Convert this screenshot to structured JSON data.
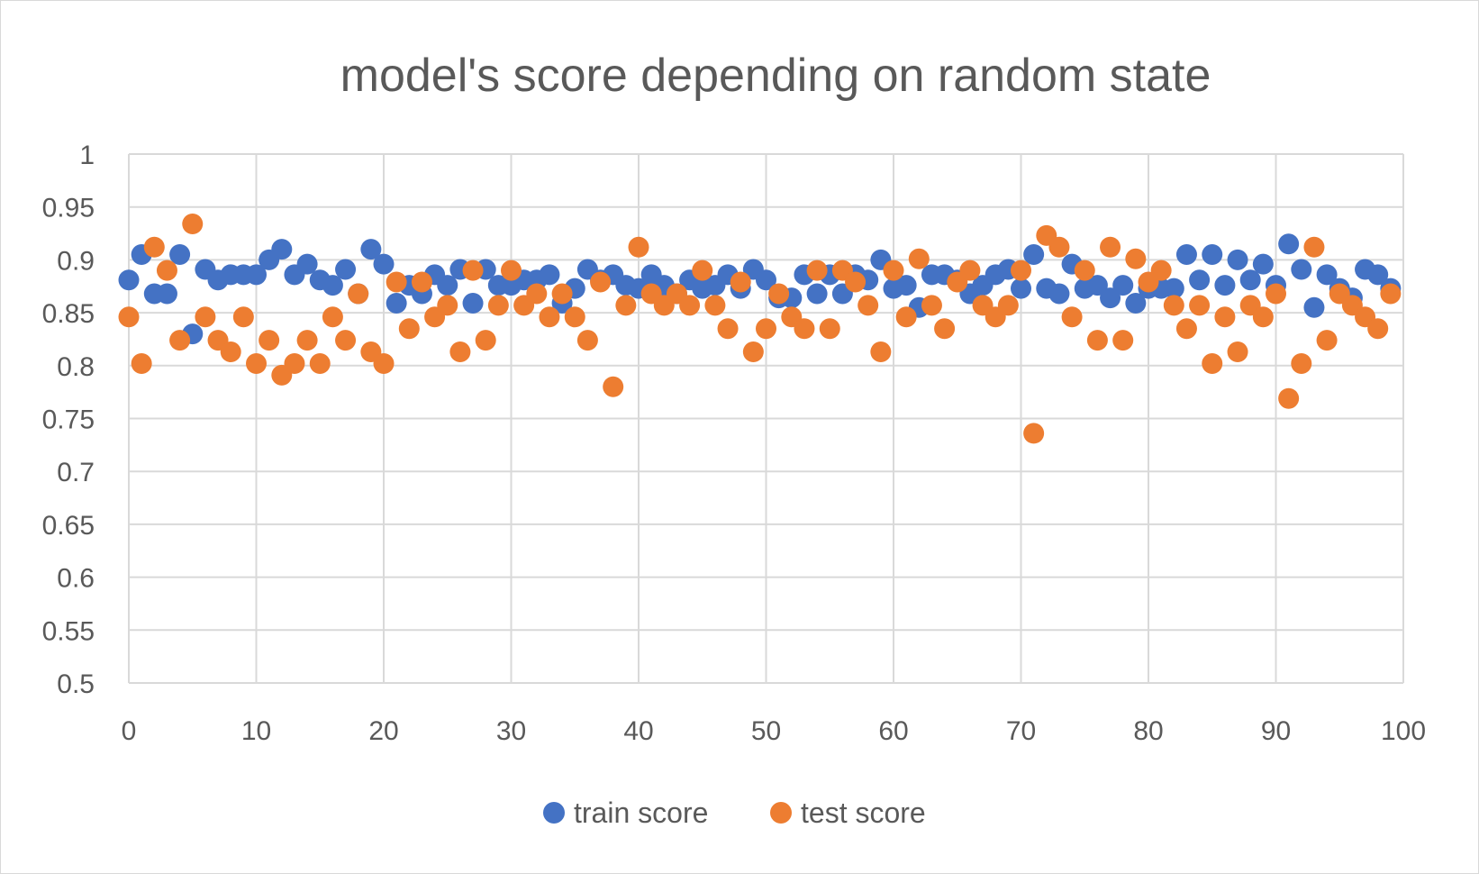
{
  "chart_data": {
    "type": "scatter",
    "title": "model's score depending on random state",
    "xlabel": "",
    "ylabel": "",
    "xlim": [
      0,
      100
    ],
    "ylim": [
      0.5,
      1
    ],
    "x_ticks": [
      0,
      10,
      20,
      30,
      40,
      50,
      60,
      70,
      80,
      90,
      100
    ],
    "y_ticks": [
      0.5,
      0.55,
      0.6,
      0.65,
      0.7,
      0.75,
      0.8,
      0.85,
      0.9,
      0.95,
      1
    ],
    "y_tick_labels": [
      "0.5",
      "0.55",
      "0.6",
      "0.65",
      "0.7",
      "0.75",
      "0.8",
      "0.85",
      "0.9",
      "0.95",
      "1"
    ],
    "grid": true,
    "legend_position": "bottom",
    "series": [
      {
        "name": "train score",
        "color": "#4472c4",
        "x": [
          0,
          1,
          2,
          3,
          4,
          5,
          6,
          7,
          8,
          9,
          10,
          11,
          12,
          13,
          14,
          15,
          16,
          17,
          18,
          19,
          20,
          21,
          22,
          23,
          24,
          25,
          26,
          27,
          28,
          29,
          30,
          31,
          32,
          33,
          34,
          35,
          36,
          37,
          38,
          39,
          40,
          41,
          42,
          43,
          44,
          45,
          46,
          47,
          48,
          49,
          50,
          51,
          52,
          53,
          54,
          55,
          56,
          57,
          58,
          59,
          60,
          61,
          62,
          63,
          64,
          65,
          66,
          67,
          68,
          69,
          70,
          71,
          72,
          73,
          74,
          75,
          76,
          77,
          78,
          79,
          80,
          81,
          82,
          83,
          84,
          85,
          86,
          87,
          88,
          89,
          90,
          91,
          92,
          93,
          94,
          95,
          96,
          97,
          98,
          99
        ],
        "y": [
          0.881,
          0.905,
          0.868,
          0.868,
          0.905,
          0.83,
          0.891,
          0.881,
          0.886,
          0.886,
          0.886,
          0.9,
          0.91,
          0.886,
          0.896,
          0.881,
          0.876,
          0.891,
          0.868,
          0.91,
          0.896,
          0.859,
          0.876,
          0.868,
          0.886,
          0.876,
          0.891,
          0.859,
          0.891,
          0.876,
          0.876,
          0.881,
          0.881,
          0.886,
          0.859,
          0.873,
          0.891,
          0.881,
          0.886,
          0.876,
          0.873,
          0.886,
          0.876,
          0.868,
          0.881,
          0.873,
          0.876,
          0.886,
          0.873,
          0.891,
          0.881,
          0.864,
          0.864,
          0.886,
          0.868,
          0.886,
          0.868,
          0.886,
          0.881,
          0.9,
          0.873,
          0.876,
          0.855,
          0.886,
          0.886,
          0.881,
          0.868,
          0.876,
          0.886,
          0.891,
          0.873,
          0.905,
          0.873,
          0.868,
          0.896,
          0.873,
          0.876,
          0.864,
          0.876,
          0.859,
          0.873,
          0.873,
          0.873,
          0.905,
          0.881,
          0.905,
          0.876,
          0.9,
          0.881,
          0.896,
          0.876,
          0.915,
          0.891,
          0.855,
          0.886,
          0.873,
          0.864,
          0.891,
          0.886,
          0.873
        ]
      },
      {
        "name": "test score",
        "color": "#ed7d31",
        "x": [
          0,
          1,
          2,
          3,
          4,
          5,
          6,
          7,
          8,
          9,
          10,
          11,
          12,
          13,
          14,
          15,
          16,
          17,
          18,
          19,
          20,
          21,
          22,
          23,
          24,
          25,
          26,
          27,
          28,
          29,
          30,
          31,
          32,
          33,
          34,
          35,
          36,
          37,
          38,
          39,
          40,
          41,
          42,
          43,
          44,
          45,
          46,
          47,
          48,
          49,
          50,
          51,
          52,
          53,
          54,
          55,
          56,
          57,
          58,
          59,
          60,
          61,
          62,
          63,
          64,
          65,
          66,
          67,
          68,
          69,
          70,
          71,
          72,
          73,
          74,
          75,
          76,
          77,
          78,
          79,
          80,
          81,
          82,
          83,
          84,
          85,
          86,
          87,
          88,
          89,
          90,
          91,
          92,
          93,
          94,
          95,
          96,
          97,
          98,
          99
        ],
        "y": [
          0.846,
          0.802,
          0.912,
          0.89,
          0.824,
          0.934,
          0.846,
          0.824,
          0.813,
          0.846,
          0.802,
          0.824,
          0.791,
          0.802,
          0.824,
          0.802,
          0.846,
          0.824,
          0.868,
          0.813,
          0.802,
          0.879,
          0.835,
          0.879,
          0.846,
          0.857,
          0.813,
          0.89,
          0.824,
          0.857,
          0.89,
          0.857,
          0.868,
          0.846,
          0.868,
          0.846,
          0.824,
          0.879,
          0.78,
          0.857,
          0.912,
          0.868,
          0.857,
          0.868,
          0.857,
          0.89,
          0.857,
          0.835,
          0.879,
          0.813,
          0.835,
          0.868,
          0.846,
          0.835,
          0.89,
          0.835,
          0.89,
          0.879,
          0.857,
          0.813,
          0.89,
          0.846,
          0.901,
          0.857,
          0.835,
          0.879,
          0.89,
          0.857,
          0.846,
          0.857,
          0.89,
          0.736,
          0.923,
          0.912,
          0.846,
          0.89,
          0.824,
          0.912,
          0.824,
          0.901,
          0.879,
          0.89,
          0.857,
          0.835,
          0.857,
          0.802,
          0.846,
          0.813,
          0.857,
          0.846,
          0.868,
          0.769,
          0.802,
          0.912,
          0.824,
          0.868,
          0.857,
          0.846,
          0.835,
          0.868
        ]
      }
    ]
  }
}
